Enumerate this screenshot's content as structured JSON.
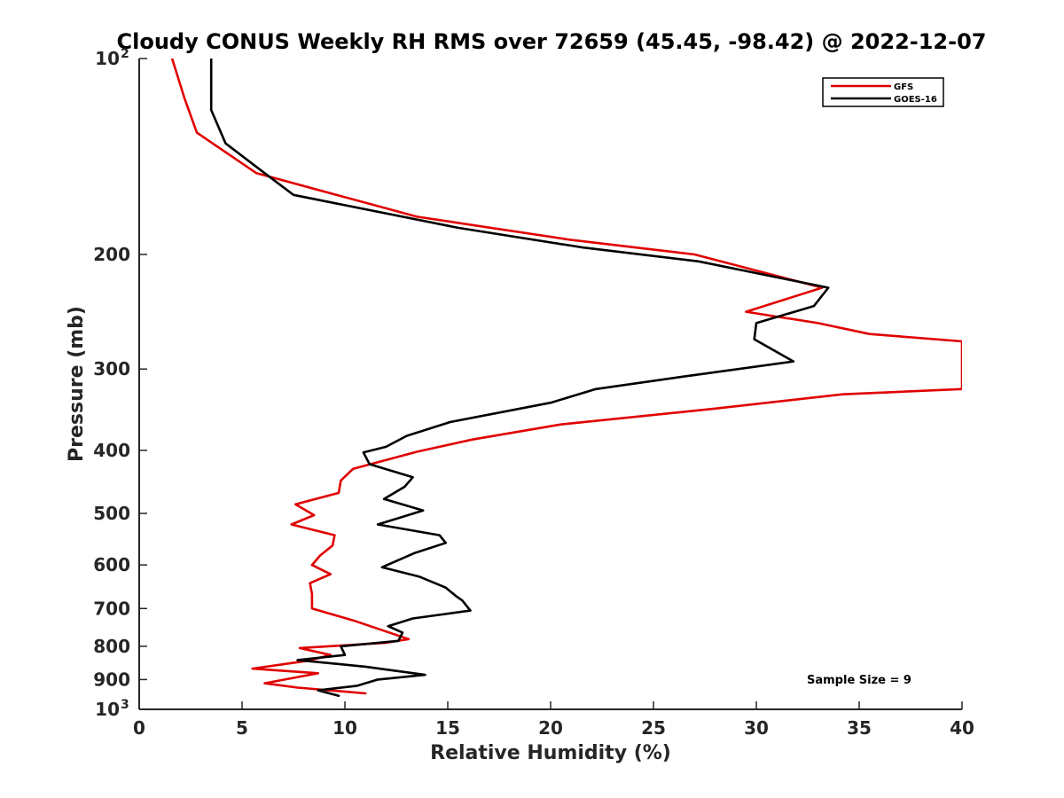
{
  "chart_data": {
    "type": "line",
    "title": "Cloudy CONUS Weekly RH RMS over 72659 (45.45, -98.42) @ 2022-12-07",
    "xlabel": "Relative Humidity (%)",
    "ylabel": "Pressure (mb)",
    "xlim": [
      0,
      40
    ],
    "ylim": [
      100,
      1000
    ],
    "yscale": "log",
    "y_reversed": true,
    "grid": false,
    "legend_position": "top-right",
    "x_ticks": [
      0,
      5,
      10,
      15,
      20,
      25,
      30,
      35,
      40
    ],
    "x_tick_labels": [
      "0",
      "5",
      "10",
      "15",
      "20",
      "25",
      "30",
      "35",
      "40"
    ],
    "y_ticks": [
      100,
      200,
      300,
      400,
      500,
      600,
      700,
      800,
      900,
      1000
    ],
    "y_tick_labels": [
      {
        "base": "10",
        "sup": "2"
      },
      {
        "base": "200"
      },
      {
        "base": "300"
      },
      {
        "base": "400"
      },
      {
        "base": "500"
      },
      {
        "base": "600"
      },
      {
        "base": "700"
      },
      {
        "base": "800"
      },
      {
        "base": "900"
      },
      {
        "base": "10",
        "sup": "3"
      }
    ],
    "annotation": "Sample Size = 9",
    "series": [
      {
        "name": "GFS",
        "color": "#e00000",
        "points": [
          [
            1.6,
            100
          ],
          [
            2.2,
            115
          ],
          [
            2.8,
            130
          ],
          [
            5.7,
            150
          ],
          [
            13.5,
            175
          ],
          [
            21,
            190
          ],
          [
            27,
            200
          ],
          [
            33.2,
            225
          ],
          [
            29.5,
            245
          ],
          [
            33,
            255
          ],
          [
            35.5,
            265
          ],
          [
            40,
            272
          ],
          [
            40,
            322
          ],
          [
            34.2,
            328
          ],
          [
            28,
            345
          ],
          [
            20.5,
            365
          ],
          [
            16.2,
            385
          ],
          [
            13.5,
            402
          ],
          [
            10.4,
            427
          ],
          [
            9.8,
            445
          ],
          [
            9.7,
            465
          ],
          [
            7.6,
            484
          ],
          [
            8.5,
            503
          ],
          [
            7.4,
            520
          ],
          [
            9.5,
            540
          ],
          [
            9.4,
            560
          ],
          [
            8.8,
            580
          ],
          [
            8.4,
            600
          ],
          [
            9.3,
            620
          ],
          [
            8.3,
            640
          ],
          [
            8.4,
            665
          ],
          [
            8.4,
            700
          ],
          [
            10.4,
            730
          ],
          [
            13.1,
            780
          ],
          [
            12,
            790
          ],
          [
            7.8,
            805
          ],
          [
            9.3,
            825
          ],
          [
            8.2,
            842
          ],
          [
            5.5,
            866
          ],
          [
            8.7,
            880
          ],
          [
            6.1,
            912
          ],
          [
            7.7,
            926
          ],
          [
            11,
            945
          ]
        ]
      },
      {
        "name": "GOES-16",
        "color": "#000000",
        "points": [
          [
            3.5,
            100
          ],
          [
            3.5,
            120
          ],
          [
            4.2,
            135
          ],
          [
            6.1,
            150
          ],
          [
            7.5,
            162
          ],
          [
            15.5,
            182
          ],
          [
            21.5,
            195
          ],
          [
            27.2,
            205
          ],
          [
            33.5,
            225
          ],
          [
            32.8,
            240
          ],
          [
            30,
            255
          ],
          [
            29.9,
            270
          ],
          [
            31.8,
            292
          ],
          [
            26.5,
            308
          ],
          [
            22.2,
            322
          ],
          [
            20,
            338
          ],
          [
            15.1,
            362
          ],
          [
            13,
            380
          ],
          [
            12,
            395
          ],
          [
            10.9,
            403
          ],
          [
            11.2,
            420
          ],
          [
            13.3,
            440
          ],
          [
            12.9,
            455
          ],
          [
            11.9,
            475
          ],
          [
            13.8,
            495
          ],
          [
            11.6,
            520
          ],
          [
            14.6,
            540
          ],
          [
            14.9,
            555
          ],
          [
            13.4,
            575
          ],
          [
            11.8,
            605
          ],
          [
            13.6,
            625
          ],
          [
            14.9,
            650
          ],
          [
            15.4,
            670
          ],
          [
            15.7,
            680
          ],
          [
            16.1,
            705
          ],
          [
            13.3,
            725
          ],
          [
            12.1,
            745
          ],
          [
            12.8,
            762
          ],
          [
            12.6,
            785
          ],
          [
            9.8,
            800
          ],
          [
            10,
            825
          ],
          [
            7.7,
            840
          ],
          [
            11,
            860
          ],
          [
            13.9,
            885
          ],
          [
            11.6,
            900
          ],
          [
            10.6,
            920
          ],
          [
            8.7,
            935
          ],
          [
            9.7,
            953
          ]
        ]
      }
    ]
  }
}
